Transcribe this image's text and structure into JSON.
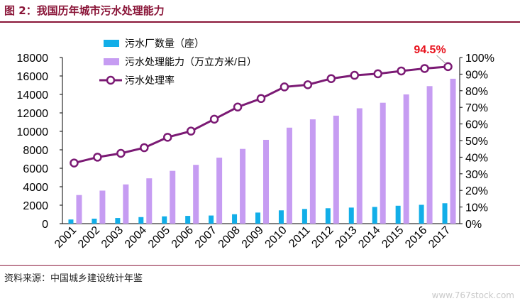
{
  "header": {
    "title": "图 2：我国历年城市污水处理能力"
  },
  "footer": {
    "source": "资料来源：中国城乡建设统计年鉴",
    "watermark": "www.767stock.com"
  },
  "chart_data": {
    "type": "bar",
    "title": "",
    "categories": [
      "2001",
      "2002",
      "2003",
      "2004",
      "2005",
      "2006",
      "2007",
      "2008",
      "2009",
      "2010",
      "2011",
      "2012",
      "2013",
      "2014",
      "2015",
      "2016",
      "2017"
    ],
    "series": [
      {
        "name": "污水厂数量（座）",
        "type": "bar",
        "axis": "left",
        "color": "#12aee8",
        "values": [
          450,
          540,
          610,
          710,
          790,
          840,
          880,
          1020,
          1200,
          1440,
          1590,
          1670,
          1740,
          1810,
          1940,
          2040,
          2210
        ]
      },
      {
        "name": "污水处理能力（万立方米/日）",
        "type": "bar",
        "axis": "left",
        "color": "#c69cf2",
        "values": [
          3100,
          3580,
          4250,
          4910,
          5720,
          6370,
          7150,
          8100,
          9080,
          10400,
          11300,
          11700,
          12500,
          13100,
          14000,
          14900,
          15700
        ]
      },
      {
        "name": "污水处理率",
        "type": "line",
        "axis": "right",
        "color": "#7b1a74",
        "values": [
          36.5,
          40.0,
          42.3,
          45.7,
          52.0,
          55.7,
          62.9,
          70.2,
          75.3,
          82.3,
          83.6,
          87.3,
          89.3,
          90.2,
          91.9,
          93.4,
          94.5
        ]
      }
    ],
    "y_left": {
      "ylim": [
        0,
        18000
      ],
      "ticks": [
        "0",
        "2000",
        "4000",
        "6000",
        "8000",
        "10000",
        "12000",
        "14000",
        "16000",
        "18000"
      ]
    },
    "y_right": {
      "ylim": [
        0,
        100
      ],
      "ticks": [
        "0%",
        "10%",
        "20%",
        "30%",
        "40%",
        "50%",
        "60%",
        "70%",
        "80%",
        "90%",
        "100%"
      ]
    },
    "annotation": {
      "text": "94.5%",
      "color": "#e8121d"
    },
    "grid": false,
    "legend_position": "top-left"
  }
}
